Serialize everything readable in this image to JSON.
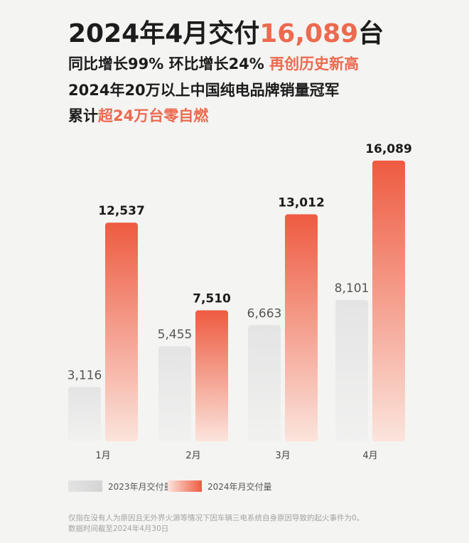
{
  "header": {
    "title_pre": "2024年4月交付",
    "title_num": "16,089",
    "title_post": "台",
    "line1_pre": "同比增长99% 环比增长24% ",
    "line1_hl": "再创历史新高",
    "line2": "2024年20万以上中国纯电品牌销量冠军",
    "line3_pre": "累计",
    "line3_hl": "超24万台零自燃"
  },
  "colors": {
    "series_2023": "#e4e4e4",
    "series_2024_top": "#ee5b41",
    "series_2024_bottom": "#fbe4dc",
    "highlight": "#ec6a4f"
  },
  "chart_data": {
    "type": "bar",
    "categories": [
      "1月",
      "2月",
      "3月",
      "4月"
    ],
    "series": [
      {
        "name": "2023年月交付量",
        "values": [
          3116,
          5455,
          6663,
          8101
        ],
        "labels": [
          "3,116",
          "5,455",
          "6,663",
          "8,101"
        ]
      },
      {
        "name": "2024年月交付量",
        "values": [
          12537,
          7510,
          13012,
          16089
        ],
        "labels": [
          "12,537",
          "7,510",
          "13,012",
          "16,089"
        ]
      }
    ],
    "ylim": [
      0,
      16089
    ],
    "grid": false,
    "legend_position": "bottom"
  },
  "footnote": {
    "line1": "仅指在没有人为原因且无外界火源等情况下因车辆三电系统自身原因导致的起火事件为0。",
    "line2": "数据时间截至2024年4月30日"
  }
}
